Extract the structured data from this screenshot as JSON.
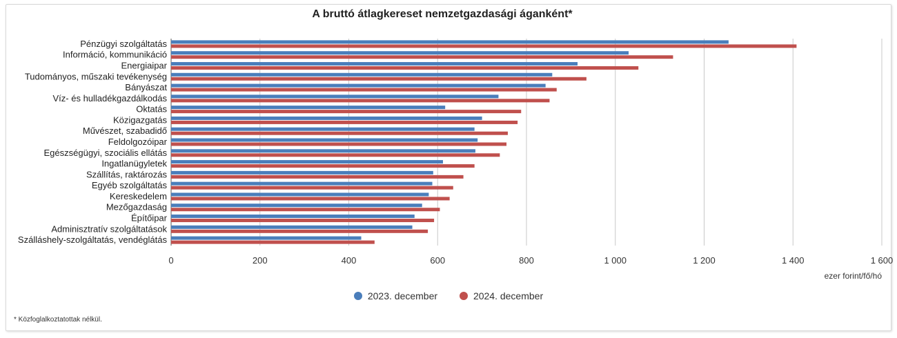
{
  "chart_data": {
    "type": "bar",
    "orientation": "horizontal",
    "title": "A bruttó átlagkereset nemzetgazdasági áganként*",
    "xlabel": "ezer forint/fő/hó",
    "ylabel": "",
    "xlim": [
      0,
      1600
    ],
    "x_ticks": [
      0,
      200,
      400,
      600,
      800,
      1000,
      1200,
      1400,
      1600
    ],
    "x_tick_labels": [
      "0",
      "200",
      "400",
      "600",
      "800",
      "1 000",
      "1 200",
      "1 400",
      "1 600"
    ],
    "grid": true,
    "legend_position": "bottom-center",
    "categories": [
      "Pénzügyi szolgáltatás",
      "Információ, kommunikáció",
      "Energiaipar",
      "Tudományos, műszaki tevékenység",
      "Bányászat",
      "Víz- és hulladékgazdálkodás",
      "Oktatás",
      "Közigazgatás",
      "Művészet, szabadidő",
      "Feldolgozóipar",
      "Egészségügyi, szociális ellátás",
      "Ingatlanügyletek",
      "Szállítás, raktározás",
      "Egyéb szolgáltatás",
      "Kereskedelem",
      "Mezőgazdaság",
      "Építőipar",
      "Adminisztratív szolgáltatások",
      "Szálláshely-szolgáltatás, vendéglátás"
    ],
    "series": [
      {
        "name": "2023. december",
        "color": "#4a7ebb",
        "values": [
          1255,
          1030,
          915,
          858,
          843,
          737,
          617,
          700,
          683,
          690,
          685,
          612,
          590,
          588,
          580,
          565,
          548,
          543,
          428
        ]
      },
      {
        "name": "2024. december",
        "color": "#c0504d",
        "values": [
          1408,
          1130,
          1052,
          935,
          868,
          852,
          788,
          780,
          758,
          755,
          740,
          683,
          658,
          635,
          627,
          605,
          592,
          578,
          458
        ]
      }
    ],
    "footnote": "* Közfoglalkoztatottak nélkül."
  }
}
